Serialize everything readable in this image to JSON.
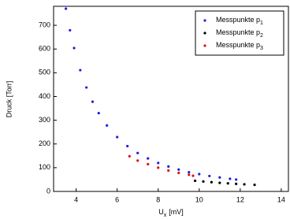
{
  "chart_data": {
    "type": "scatter",
    "x_label": "U",
    "x_label_subscript": "x",
    "x_label_unit": "[mV]",
    "y_label": "Druck [Torr]",
    "xlim": [
      2.9,
      14.35
    ],
    "xticks": [
      4,
      6,
      8,
      10,
      12,
      14
    ],
    "ylim": [
      0,
      780
    ],
    "yticks": [
      0,
      100,
      200,
      300,
      400,
      500,
      600,
      700
    ],
    "legend": "upper right",
    "series": [
      {
        "name": "Messpunkte p",
        "subscript": "1",
        "color": "#1f1fe0",
        "x": [
          3.5,
          3.7,
          3.9,
          4.2,
          4.5,
          4.8,
          5.1,
          5.5,
          6,
          6.5,
          7,
          7.5,
          8,
          8.5,
          9,
          9.5,
          10,
          10.5,
          11,
          11.5,
          11.8
        ],
        "values": [
          770,
          679,
          604,
          511,
          438,
          378,
          330,
          278,
          229,
          191,
          162,
          139,
          120,
          105,
          92,
          81,
          73,
          65,
          59,
          53,
          50
        ]
      },
      {
        "name": "Messpunkte p",
        "subscript": "2",
        "color": "#000000",
        "x": [
          9.8,
          10.2,
          10.6,
          11,
          11.4,
          11.8,
          12.2,
          12.7
        ],
        "values": [
          45,
          42,
          39,
          36,
          34,
          32,
          30,
          28
        ]
      },
      {
        "name": "Messpunkte p",
        "subscript": "3",
        "color": "#e01010",
        "x": [
          6.6,
          7,
          7.5,
          8,
          8.5,
          9,
          9.5,
          9.7
        ],
        "values": [
          148,
          130,
          115,
          100,
          88,
          78,
          70,
          66
        ]
      }
    ]
  }
}
